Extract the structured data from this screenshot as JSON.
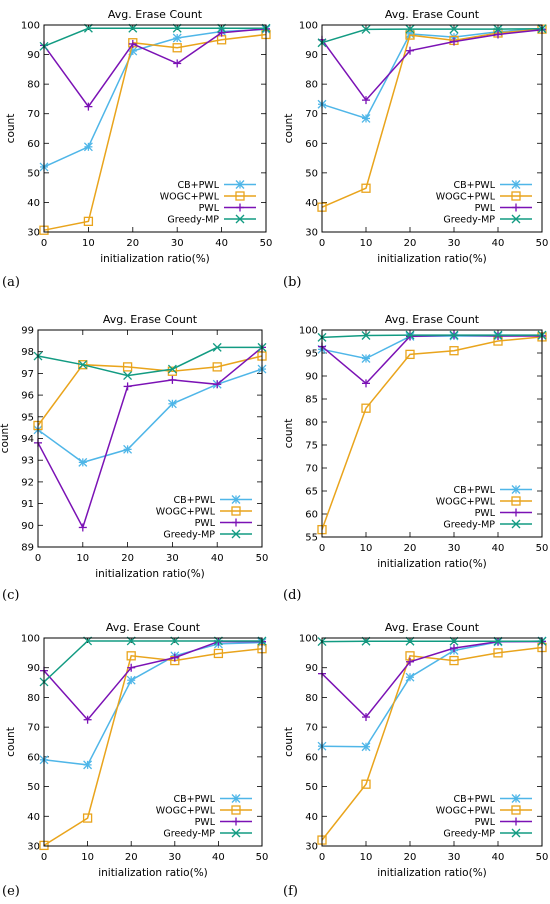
{
  "series_styles": [
    {
      "name": "CB+PWL",
      "color": "#4fb6e8",
      "marker": "star"
    },
    {
      "name": "WOGC+PWL",
      "color": "#e9a41c",
      "marker": "square"
    },
    {
      "name": "PWL",
      "color": "#7b12b5",
      "marker": "plus"
    },
    {
      "name": "Greedy-MP",
      "color": "#129b82",
      "marker": "x"
    }
  ],
  "chart_data": [
    {
      "panel_label": "(a)",
      "type": "line",
      "title": "Avg. Erase Count",
      "xlabel": "initialization ratio(%)",
      "ylabel": "count",
      "x": [
        0,
        10,
        20,
        30,
        40,
        50
      ],
      "xlim": [
        0,
        50
      ],
      "ylim": [
        30,
        100
      ],
      "yticks": [
        30,
        40,
        50,
        60,
        70,
        80,
        90,
        100
      ],
      "legend": "bottom-right",
      "grid": false,
      "series": [
        {
          "name": "CB+PWL",
          "values": [
            52,
            58.8,
            91.2,
            95.6,
            97.8,
            98.5
          ]
        },
        {
          "name": "WOGC+PWL",
          "values": [
            30.6,
            33.6,
            94,
            92.3,
            95,
            96.8
          ]
        },
        {
          "name": "PWL",
          "values": [
            93.1,
            72.4,
            93.6,
            87,
            97.4,
            98.7
          ]
        },
        {
          "name": "Greedy-MP",
          "values": [
            92.8,
            98.9,
            98.9,
            98.9,
            98.9,
            98.9
          ]
        }
      ]
    },
    {
      "panel_label": "(b)",
      "type": "line",
      "title": "Avg. Erase Count",
      "xlabel": "initialization ratio(%)",
      "ylabel": "count",
      "x": [
        0,
        10,
        20,
        30,
        40,
        50
      ],
      "xlim": [
        0,
        50
      ],
      "ylim": [
        30,
        100
      ],
      "yticks": [
        30,
        40,
        50,
        60,
        70,
        80,
        90,
        100
      ],
      "legend": "bottom-right",
      "grid": false,
      "series": [
        {
          "name": "CB+PWL",
          "values": [
            73.2,
            68.4,
            97,
            95.9,
            97.7,
            98.8
          ]
        },
        {
          "name": "WOGC+PWL",
          "values": [
            38.4,
            44.8,
            96.6,
            94.8,
            97.3,
            98.6
          ]
        },
        {
          "name": "PWL",
          "values": [
            95,
            74.6,
            91.3,
            94.4,
            96.8,
            98.4
          ]
        },
        {
          "name": "Greedy-MP",
          "values": [
            94,
            98.5,
            98.6,
            98.6,
            98.6,
            98.7
          ]
        }
      ]
    },
    {
      "panel_label": "(c)",
      "type": "line",
      "title": "Avg. Erase Count",
      "xlabel": "initialization ratio(%)",
      "ylabel": "count",
      "x": [
        0,
        10,
        20,
        30,
        40,
        50
      ],
      "xlim": [
        0,
        50
      ],
      "ylim": [
        89,
        99
      ],
      "yticks": [
        89,
        90,
        91,
        92,
        93,
        94,
        95,
        96,
        97,
        98,
        99
      ],
      "legend": "bottom-right",
      "grid": false,
      "series": [
        {
          "name": "CB+PWL",
          "values": [
            94.4,
            92.9,
            93.5,
            95.6,
            96.5,
            97.2
          ]
        },
        {
          "name": "WOGC+PWL",
          "values": [
            94.6,
            97.4,
            97.3,
            97.1,
            97.3,
            97.8
          ]
        },
        {
          "name": "PWL",
          "values": [
            93.8,
            89.9,
            96.4,
            96.7,
            96.5,
            98.2
          ]
        },
        {
          "name": "Greedy-MP",
          "values": [
            97.8,
            97.4,
            96.9,
            97.2,
            98.2,
            98.2
          ]
        }
      ]
    },
    {
      "panel_label": "(d)",
      "type": "line",
      "title": "Avg. Erase Count",
      "xlabel": "initialization ratio(%)",
      "ylabel": "count",
      "x": [
        0,
        10,
        20,
        30,
        40,
        50
      ],
      "xlim": [
        0,
        50
      ],
      "ylim": [
        55,
        100
      ],
      "yticks": [
        55,
        60,
        65,
        70,
        75,
        80,
        85,
        90,
        95,
        100
      ],
      "legend": "bottom-right",
      "grid": false,
      "series": [
        {
          "name": "CB+PWL",
          "values": [
            95.8,
            93.8,
            98.6,
            98.7,
            98.7,
            98.8
          ]
        },
        {
          "name": "WOGC+PWL",
          "values": [
            56.6,
            83,
            94.7,
            95.5,
            97.6,
            98.5
          ]
        },
        {
          "name": "PWL",
          "values": [
            96.4,
            88.4,
            98.6,
            98.9,
            98.7,
            98.7
          ]
        },
        {
          "name": "Greedy-MP",
          "values": [
            98.4,
            98.8,
            98.9,
            98.9,
            98.9,
            98.9
          ]
        }
      ]
    },
    {
      "panel_label": "(e)",
      "type": "line",
      "title": "Avg. Erase Count",
      "xlabel": "initialization ratio(%)",
      "ylabel": "count",
      "x": [
        0,
        10,
        20,
        30,
        40,
        50
      ],
      "xlim": [
        0,
        50
      ],
      "ylim": [
        30,
        100
      ],
      "yticks": [
        30,
        40,
        50,
        60,
        70,
        80,
        90,
        100
      ],
      "legend": "bottom-right",
      "grid": false,
      "series": [
        {
          "name": "CB+PWL",
          "values": [
            59,
            57.3,
            85.8,
            94,
            98,
            98.5
          ]
        },
        {
          "name": "WOGC+PWL",
          "values": [
            30.2,
            39.4,
            94,
            92.4,
            94.8,
            96.4
          ]
        },
        {
          "name": "PWL",
          "values": [
            89,
            72.5,
            90,
            93.4,
            98.8,
            98.8
          ]
        },
        {
          "name": "Greedy-MP",
          "values": [
            85.2,
            99,
            99,
            99,
            99,
            99
          ]
        }
      ]
    },
    {
      "panel_label": "(f)",
      "type": "line",
      "title": "Avg. Erase Count",
      "xlabel": "initialization ratio(%)",
      "ylabel": "count",
      "x": [
        0,
        10,
        20,
        30,
        40,
        50
      ],
      "xlim": [
        0,
        50
      ],
      "ylim": [
        30,
        100
      ],
      "yticks": [
        30,
        40,
        50,
        60,
        70,
        80,
        90,
        100
      ],
      "legend": "bottom-right",
      "grid": false,
      "series": [
        {
          "name": "CB+PWL",
          "values": [
            63.6,
            63.4,
            86.8,
            95.8,
            98.7,
            99
          ]
        },
        {
          "name": "WOGC+PWL",
          "values": [
            32,
            50.8,
            94,
            92.4,
            95,
            96.8
          ]
        },
        {
          "name": "PWL",
          "values": [
            88,
            73.4,
            92,
            96.6,
            98.8,
            98.8
          ]
        },
        {
          "name": "Greedy-MP",
          "values": [
            98.8,
            98.9,
            98.9,
            98.9,
            98.9,
            98.9
          ]
        }
      ]
    }
  ]
}
